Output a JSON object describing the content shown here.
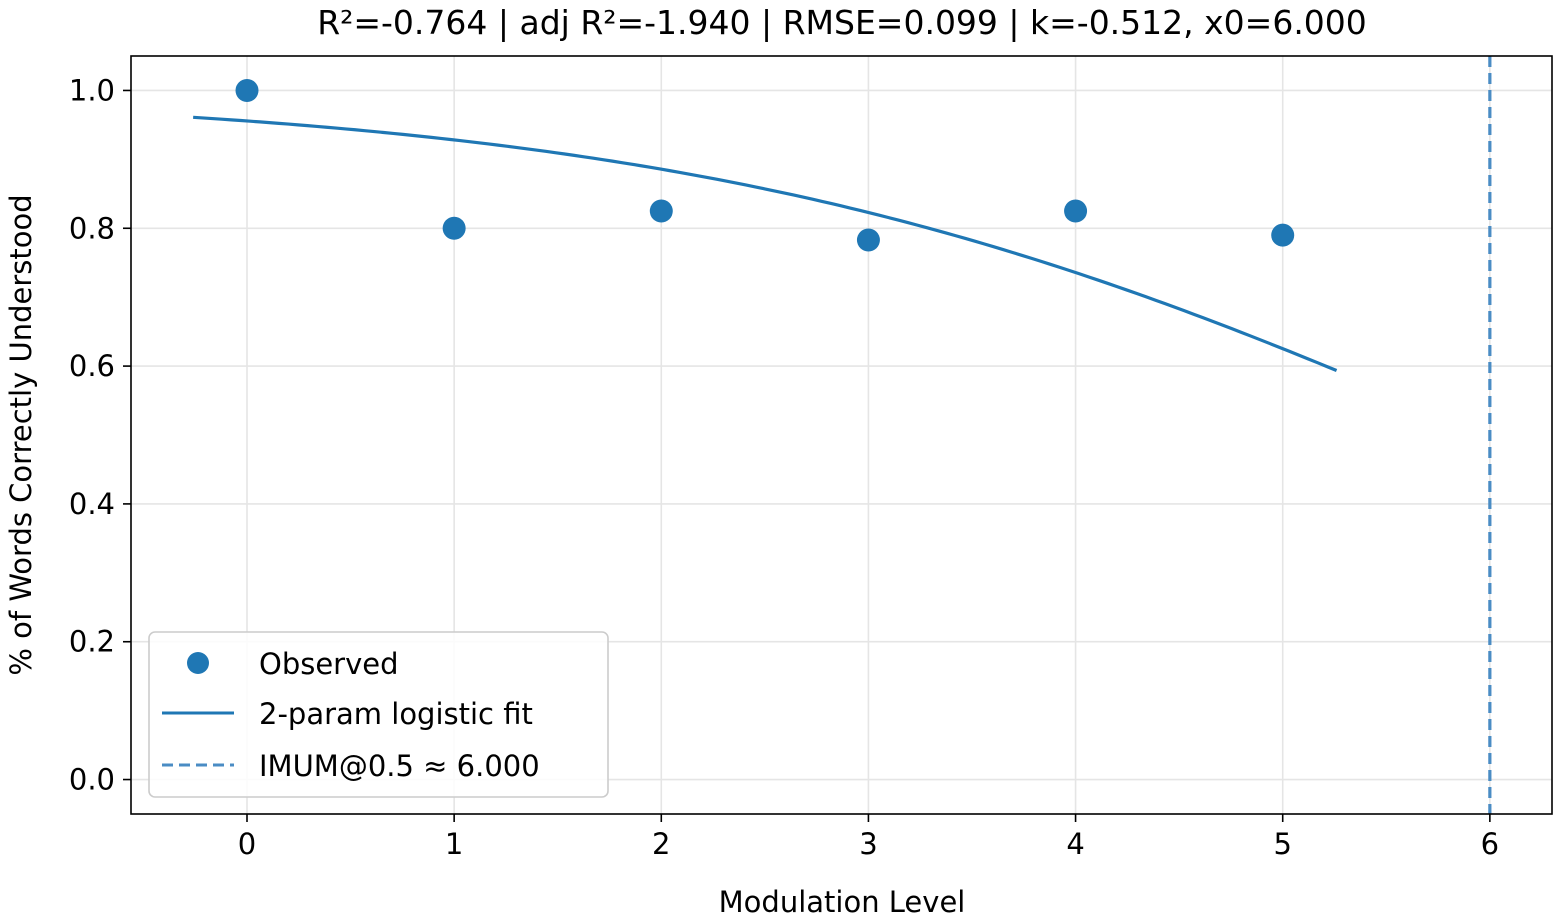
{
  "chart_data": {
    "type": "scatter",
    "title": "R²=-0.764 | adj R²=-1.940 | RMSE=0.099 | k=-0.512, x0=6.000",
    "xlabel": "Modulation Level",
    "ylabel": "% of Words Correctly Understood",
    "xlim": [
      -0.56,
      6.3
    ],
    "ylim": [
      -0.05,
      1.05
    ],
    "x_ticks": [
      "0",
      "1",
      "2",
      "3",
      "4",
      "5",
      "6"
    ],
    "y_ticks": [
      "0.0",
      "0.2",
      "0.4",
      "0.6",
      "0.8",
      "1.0"
    ],
    "grid": true,
    "legend_position": "lower-left",
    "series": [
      {
        "name": "Observed",
        "kind": "scatter",
        "color": "#1f77b4",
        "x": [
          0,
          1,
          2,
          3,
          4,
          5
        ],
        "y": [
          1.0,
          0.8,
          0.825,
          0.783,
          0.825,
          0.79
        ]
      },
      {
        "name": "2-param logistic fit",
        "kind": "line",
        "color": "#1f77b4",
        "k": -0.512,
        "x0": 6.0,
        "x_range": [
          -0.26,
          5.26
        ]
      },
      {
        "name": "IMUM@0.5 ≈ 6.000",
        "kind": "vline",
        "color": "#4a8cc4",
        "x": 6.0
      }
    ]
  }
}
